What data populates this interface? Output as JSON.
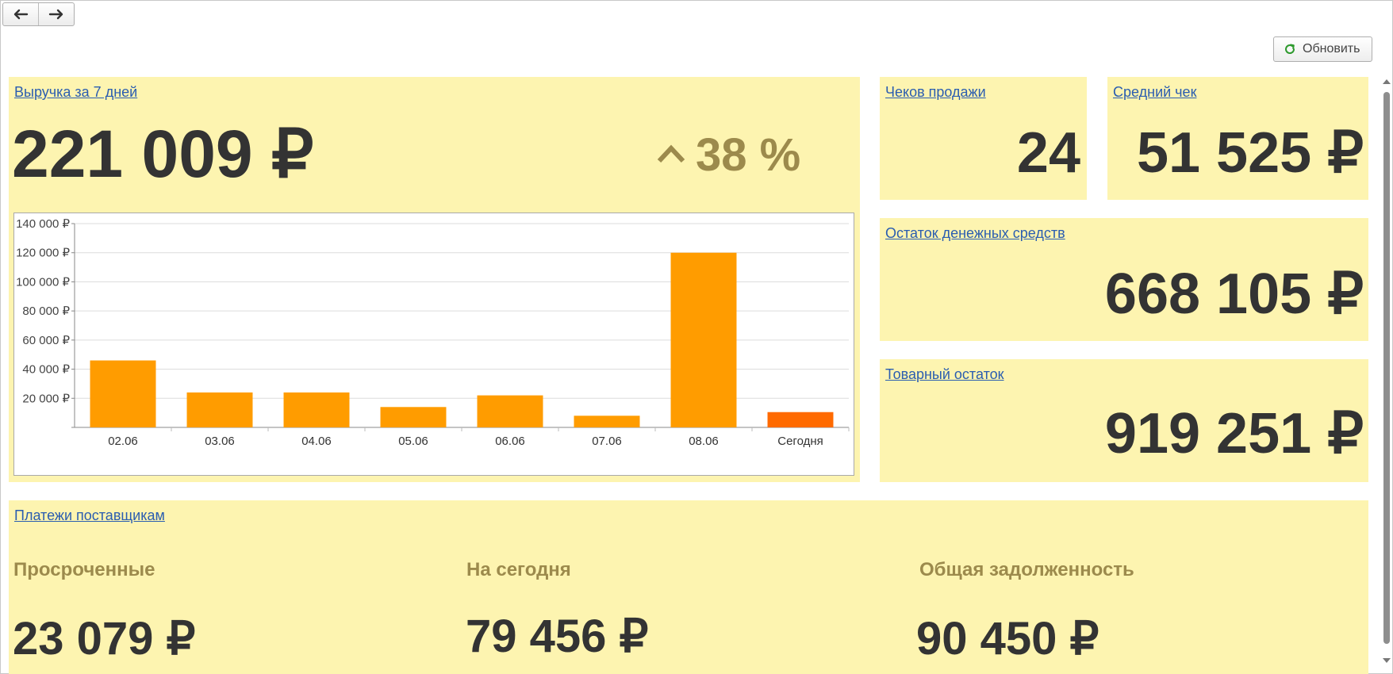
{
  "revenue": {
    "title": "Выручка за 7 дней",
    "value": "221 009 ₽",
    "change": "38 %",
    "change_icon": "chevron-up-icon"
  },
  "checks": {
    "title": "Чеков продажи",
    "value": "24"
  },
  "avg_check": {
    "title": "Средний чек",
    "value": "51 525 ₽"
  },
  "cash": {
    "title": "Остаток денежных средств",
    "value": "668 105 ₽"
  },
  "stock": {
    "title": "Товарный остаток",
    "value": "919 251 ₽"
  },
  "payments": {
    "title": "Платежи поставщикам",
    "overdue_label": "Просроченные",
    "overdue_value": "23 079 ₽",
    "today_label": "На сегодня",
    "today_value": "79 456 ₽",
    "total_label": "Общая задолженность",
    "total_value": "90 450 ₽"
  },
  "toolbar": {
    "refresh_label": "Обновить",
    "refresh_icon": "refresh-icon",
    "back_icon": "arrow-left-icon",
    "forward_icon": "arrow-right-icon"
  },
  "colors": {
    "panel_bg": "#fdf4b0",
    "bar": "#ff9c00",
    "bar_today": "#ff6a00",
    "link": "#2a5db0",
    "change": "#9c8a4c"
  },
  "chart_data": {
    "type": "bar",
    "categories": [
      "02.06",
      "03.06",
      "04.06",
      "05.06",
      "06.06",
      "07.06",
      "08.06",
      "Сегодня"
    ],
    "values": [
      46000,
      24000,
      24000,
      14000,
      22000,
      8000,
      120000,
      10500
    ],
    "ylim": [
      0,
      140000
    ],
    "yticks": [
      20000,
      40000,
      60000,
      80000,
      100000,
      120000,
      140000
    ],
    "ytick_labels": [
      "20 000 ₽",
      "40 000 ₽",
      "60 000 ₽",
      "80 000 ₽",
      "100 000 ₽",
      "120 000 ₽",
      "140 000 ₽"
    ],
    "grid": true,
    "legend": "none"
  }
}
